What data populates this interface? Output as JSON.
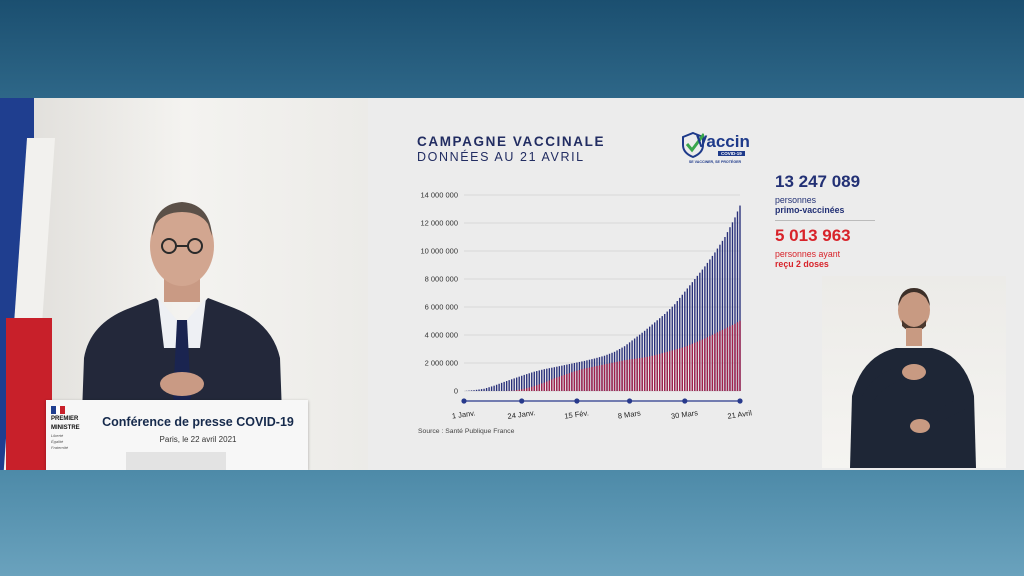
{
  "conference": {
    "title": "Conférence de presse COVID-19",
    "date": "Paris, le 22 avril 2021",
    "logo_line1": "PREMIER",
    "logo_line2": "MINISTRE",
    "logo_motto": [
      "Liberté",
      "Égalité",
      "Fraternité"
    ]
  },
  "slide": {
    "title": "CAMPAGNE VACCINALE",
    "subtitle": "DONNÉES AU 21 AVRIL",
    "logo": {
      "word": "Vaccin",
      "badge": "COVID-19",
      "tagline": "SE VACCINER, SE PROTÉGER"
    },
    "source": "Source : Santé Publique France",
    "stats": {
      "primo": {
        "value": "13 247 089",
        "line1": "personnes",
        "line2": "primo-vaccinées"
      },
      "doses": {
        "value": "5 013 963",
        "line1": "personnes ayant",
        "line2": "reçu 2 doses"
      }
    }
  },
  "colors": {
    "primo_series": "#29307a",
    "doses_series": "#a3204a",
    "title_navy": "#222d62",
    "accent_red": "#d8232a",
    "axis_marker": "#283a8c"
  },
  "chart_data": {
    "type": "bar",
    "ylim": [
      0,
      14000000
    ],
    "y_ticks": [
      0,
      2000000,
      4000000,
      6000000,
      8000000,
      10000000,
      12000000,
      14000000
    ],
    "y_tick_labels": [
      "0",
      "2 000 000",
      "4 000 000",
      "6 000 000",
      "8 000 000",
      "10 000 000",
      "12 000 000",
      "14 000 000"
    ],
    "x_ticks": [
      "1 Janv.",
      "24 Janv.",
      "15 Fév.",
      "8 Mars",
      "30 Mars",
      "21 Avril"
    ],
    "x_tick_days": [
      0,
      23,
      45,
      66,
      88,
      110
    ],
    "grid": true,
    "series": [
      {
        "name": "personnes primo-vaccinées",
        "color": "#29307a",
        "anchors": [
          [
            0,
            0
          ],
          [
            4,
            60000
          ],
          [
            8,
            160000
          ],
          [
            12,
            380000
          ],
          [
            16,
            650000
          ],
          [
            20,
            900000
          ],
          [
            24,
            1150000
          ],
          [
            28,
            1380000
          ],
          [
            32,
            1560000
          ],
          [
            36,
            1700000
          ],
          [
            40,
            1850000
          ],
          [
            44,
            2000000
          ],
          [
            48,
            2150000
          ],
          [
            52,
            2320000
          ],
          [
            56,
            2520000
          ],
          [
            60,
            2800000
          ],
          [
            64,
            3200000
          ],
          [
            68,
            3750000
          ],
          [
            72,
            4300000
          ],
          [
            76,
            4900000
          ],
          [
            80,
            5500000
          ],
          [
            84,
            6200000
          ],
          [
            88,
            7100000
          ],
          [
            92,
            8000000
          ],
          [
            96,
            8900000
          ],
          [
            100,
            9900000
          ],
          [
            104,
            11000000
          ],
          [
            108,
            12400000
          ],
          [
            110,
            13247089
          ]
        ]
      },
      {
        "name": "personnes ayant reçu 2 doses",
        "color": "#a3204a",
        "anchors": [
          [
            0,
            0
          ],
          [
            16,
            0
          ],
          [
            20,
            30000
          ],
          [
            24,
            150000
          ],
          [
            28,
            350000
          ],
          [
            32,
            600000
          ],
          [
            36,
            900000
          ],
          [
            40,
            1150000
          ],
          [
            44,
            1400000
          ],
          [
            48,
            1600000
          ],
          [
            52,
            1750000
          ],
          [
            56,
            1900000
          ],
          [
            60,
            2050000
          ],
          [
            64,
            2200000
          ],
          [
            68,
            2300000
          ],
          [
            72,
            2400000
          ],
          [
            76,
            2550000
          ],
          [
            80,
            2750000
          ],
          [
            84,
            2950000
          ],
          [
            88,
            3150000
          ],
          [
            92,
            3450000
          ],
          [
            96,
            3750000
          ],
          [
            100,
            4100000
          ],
          [
            104,
            4450000
          ],
          [
            108,
            4800000
          ],
          [
            110,
            5013963
          ]
        ]
      }
    ]
  }
}
